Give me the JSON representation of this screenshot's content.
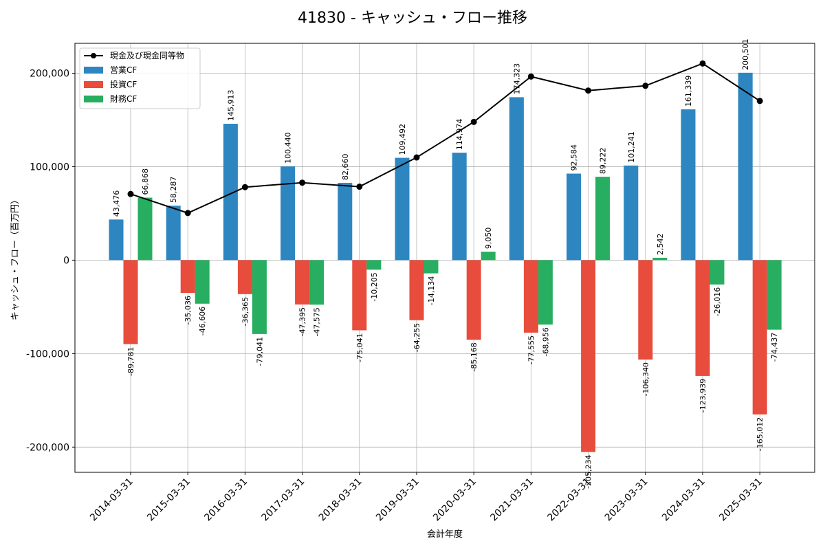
{
  "chart_data": {
    "type": "bar",
    "title": "41830 - キャッシュ・フロー推移",
    "xlabel": "会計年度",
    "ylabel": "キャッシュ・フロー（百万円）",
    "categories": [
      "2014-03-31",
      "2015-03-31",
      "2016-03-31",
      "2017-03-31",
      "2018-03-31",
      "2019-03-31",
      "2020-03-31",
      "2021-03-31",
      "2022-03-31",
      "2023-03-31",
      "2024-03-31",
      "2025-03-31"
    ],
    "ylim": [
      -227000,
      232000
    ],
    "yticks": [
      -200000,
      -100000,
      0,
      100000,
      200000
    ],
    "ytick_labels": [
      "-200,000",
      "-100,000",
      "0",
      "100,000",
      "200,000"
    ],
    "grid": true,
    "legend_position": "top-left",
    "series": [
      {
        "name": "営業CF",
        "kind": "bar",
        "color": "#2e86c1",
        "values": [
          43476,
          58287,
          145913,
          100440,
          82660,
          109492,
          114974,
          174323,
          92584,
          101241,
          161339,
          200501
        ],
        "labels": [
          "43,476",
          "58,287",
          "145,913",
          "100,440",
          "82,660",
          "109,492",
          "114,974",
          "174,323",
          "92,584",
          "101,241",
          "161,339",
          "200,501"
        ]
      },
      {
        "name": "投資CF",
        "kind": "bar",
        "color": "#e74c3c",
        "values": [
          -89781,
          -35036,
          -36365,
          -47395,
          -75041,
          -64255,
          -85168,
          -77555,
          -205234,
          -106340,
          -123939,
          -165012
        ],
        "labels": [
          "-89,781",
          "-35,036",
          "-36,365",
          "-47,395",
          "-75,041",
          "-64,255",
          "-85,168",
          "-77,555",
          "-205,234",
          "-106,340",
          "-123,939",
          "-165,012"
        ]
      },
      {
        "name": "財務CF",
        "kind": "bar",
        "color": "#27ae60",
        "values": [
          66868,
          -46606,
          -79041,
          -47575,
          -10205,
          -14134,
          9050,
          -68956,
          89222,
          2542,
          -26016,
          -74437
        ],
        "labels": [
          "66,868",
          "-46,606",
          "-79,041",
          "-47,575",
          "-10,205",
          "-14,134",
          "9,050",
          "-68,956",
          "89,222",
          "2,542",
          "-26,016",
          "-74,437"
        ]
      },
      {
        "name": "現金及び現金同等物",
        "kind": "line",
        "color": "#000000",
        "values": [
          70796,
          50407,
          78094,
          82883,
          78591,
          109881,
          147897,
          196436,
          181456,
          186574,
          210399,
          170325
        ]
      }
    ]
  }
}
